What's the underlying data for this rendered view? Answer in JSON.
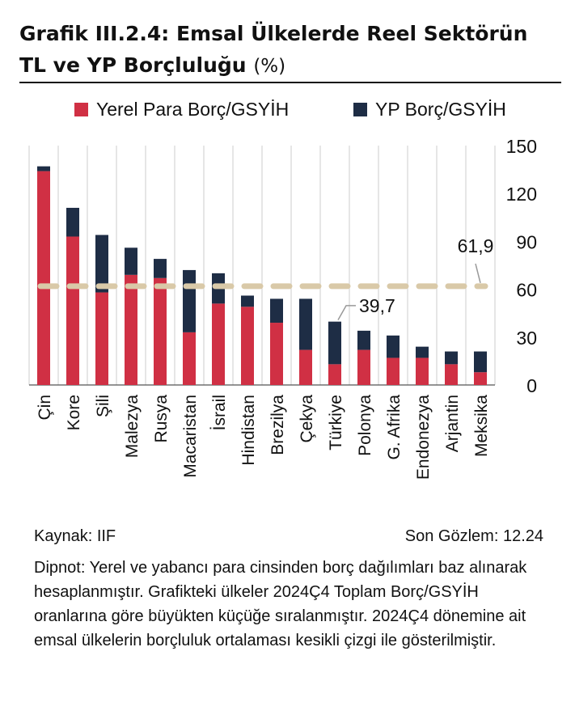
{
  "title_part1": "Grafik III.2.4: Emsal Ülkelerde Reel Sektörün",
  "title_part2": "TL ve YP Borçluluğu",
  "title_unit": "(%)",
  "source": "Kaynak: IIF",
  "last_observation": "Son Gözlem: 12.24",
  "footnote": "Dipnot: Yerel ve yabancı para cinsinden borç dağılımları baz alınarak hesaplanmıştır. Grafikteki ülkeler 2024Ç4 Toplam Borç/GSYİH oranlarına göre büyükten küçüğe sıralanmıştır. 2024Ç4 dönemine ait emsal ülkelerin borçluluk ortalaması kesikli çizgi ile gösterilmiştir.",
  "colors": {
    "local": "#d03044",
    "fx": "#1e2d45",
    "average": "#d9c9a8",
    "grid": "#cccccc"
  },
  "chart_data": {
    "type": "bar",
    "stacked": true,
    "categories": [
      "Çin",
      "Kore",
      "Şili",
      "Malezya",
      "Rusya",
      "Macaristan",
      "İsrail",
      "Hindistan",
      "Brezilya",
      "Çekya",
      "Türkiye",
      "Polonya",
      "G. Afrika",
      "Endonezya",
      "Arjantin",
      "Meksika"
    ],
    "series": [
      {
        "name": "Yerel Para Borç/GSYİH",
        "values": [
          134,
          93,
          58,
          69,
          67,
          33,
          51,
          49,
          39,
          22,
          13,
          22,
          17,
          17,
          13,
          8
        ]
      },
      {
        "name": "YP Borç/GSYİH",
        "values": [
          3,
          18,
          36,
          17,
          12,
          39,
          19,
          7,
          15,
          32,
          26.7,
          12,
          14,
          7,
          8,
          13
        ]
      }
    ],
    "average": 61.9,
    "average_label": "61,9",
    "turkey_label": "39,7",
    "ylim": [
      0,
      150
    ],
    "yticks": [
      0,
      30,
      60,
      90,
      120,
      150
    ],
    "y_axis_side": "right",
    "grid": true,
    "legend_position": "top"
  }
}
